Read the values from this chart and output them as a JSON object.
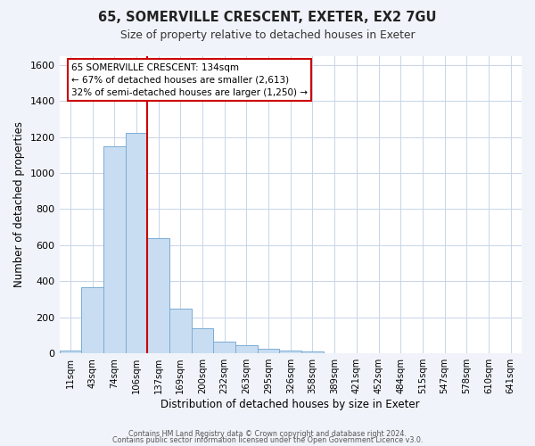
{
  "title": "65, SOMERVILLE CRESCENT, EXETER, EX2 7GU",
  "subtitle": "Size of property relative to detached houses in Exeter",
  "xlabel": "Distribution of detached houses by size in Exeter",
  "ylabel": "Number of detached properties",
  "bar_labels": [
    "11sqm",
    "43sqm",
    "74sqm",
    "106sqm",
    "137sqm",
    "169sqm",
    "200sqm",
    "232sqm",
    "263sqm",
    "295sqm",
    "326sqm",
    "358sqm",
    "389sqm",
    "421sqm",
    "452sqm",
    "484sqm",
    "515sqm",
    "547sqm",
    "578sqm",
    "610sqm",
    "641sqm"
  ],
  "bar_values": [
    15,
    365,
    1150,
    1220,
    640,
    250,
    140,
    65,
    48,
    28,
    18,
    10,
    3,
    1,
    0,
    1,
    0,
    0,
    0,
    0,
    0
  ],
  "bar_color": "#c9ddf2",
  "bar_edge_color": "#7aadd4",
  "vline_x": 3.5,
  "vline_color": "#cc0000",
  "annotation_title": "65 SOMERVILLE CRESCENT: 134sqm",
  "annotation_line1": "← 67% of detached houses are smaller (2,613)",
  "annotation_line2": "32% of semi-detached houses are larger (1,250) →",
  "annotation_box_color": "#ffffff",
  "annotation_box_edge": "#cc0000",
  "ylim": [
    0,
    1650
  ],
  "yticks": [
    0,
    200,
    400,
    600,
    800,
    1000,
    1200,
    1400,
    1600
  ],
  "footer1": "Contains HM Land Registry data © Crown copyright and database right 2024.",
  "footer2": "Contains public sector information licensed under the Open Government Licence v3.0.",
  "bg_color": "#f0f4fa",
  "plot_bg_color": "#ffffff",
  "grid_color": "#c8d4e8"
}
